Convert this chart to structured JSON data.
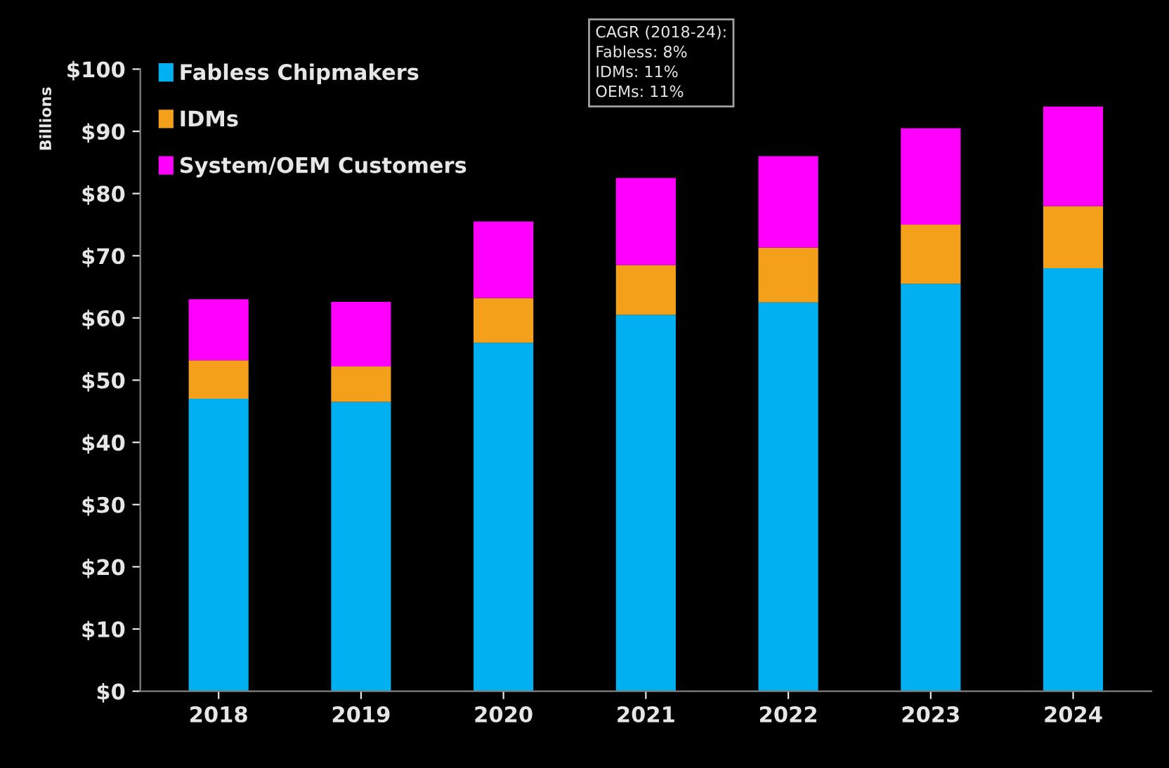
{
  "chart_data": {
    "type": "bar",
    "stacked": true,
    "ylabel": "Billions",
    "categories": [
      "2018",
      "2019",
      "2020",
      "2021",
      "2022",
      "2023",
      "2024"
    ],
    "series": [
      {
        "name": "Fabless Chipmakers",
        "color": "#00b0f0",
        "values": [
          47,
          46.5,
          56,
          60.5,
          62.5,
          65.5,
          68
        ]
      },
      {
        "name": "IDMs",
        "color": "#f5a01a",
        "values": [
          6.2,
          5.7,
          7.2,
          8,
          8.8,
          9.5,
          10
        ]
      },
      {
        "name": "System/OEM Customers",
        "color": "#ff00ff",
        "values": [
          9.8,
          10.4,
          12.3,
          14,
          14.7,
          15.5,
          16
        ]
      }
    ],
    "ylim": [
      0,
      100
    ],
    "yticks": [
      {
        "value": 0,
        "label": "$0"
      },
      {
        "value": 10,
        "label": "$10"
      },
      {
        "value": 20,
        "label": "$20"
      },
      {
        "value": 30,
        "label": "$30"
      },
      {
        "value": 40,
        "label": "$40"
      },
      {
        "value": 50,
        "label": "$50"
      },
      {
        "value": 60,
        "label": "$60"
      },
      {
        "value": 70,
        "label": "$70"
      },
      {
        "value": 80,
        "label": "$80"
      },
      {
        "value": 90,
        "label": "$90"
      },
      {
        "value": 100,
        "label": "$100"
      }
    ],
    "grid": false,
    "legend": "top left",
    "annotations": [
      "CAGR (2018-24):",
      "Fabless: 8%\nIDMs: 11%\nOEMs: 11%"
    ]
  }
}
